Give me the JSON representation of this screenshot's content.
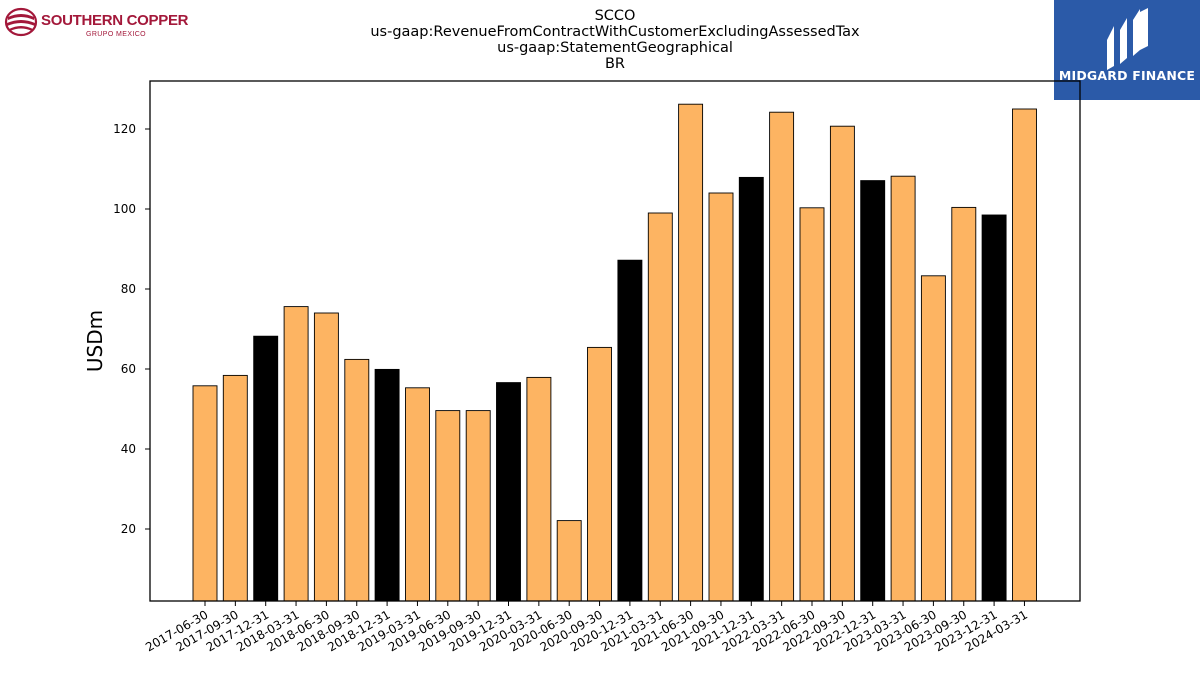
{
  "logos": {
    "left_name": "SOUTHERN COPPER",
    "left_sub": "GRUPO MEXICO",
    "right_name": "MIDGARD FINANCE"
  },
  "colors": {
    "bar_default": "#fdb462",
    "bar_year_end": "#000000",
    "bar_edge": "#000000",
    "right_logo_bg": "#2b5aa8",
    "left_logo": "#a3183a"
  },
  "chart_data": {
    "type": "bar",
    "title": [
      "SCCO",
      "us-gaap:RevenueFromContractWithCustomerExcludingAssessedTax",
      "us-gaap:StatementGeographical",
      "BR"
    ],
    "xlabel": "",
    "ylabel": "USDm",
    "ylim": [
      2,
      132
    ],
    "yticks": [
      20,
      40,
      60,
      80,
      100,
      120
    ],
    "grid": false,
    "categories": [
      "2017-06-30",
      "2017-09-30",
      "2017-12-31",
      "2018-03-31",
      "2018-06-30",
      "2018-09-30",
      "2018-12-31",
      "2019-03-31",
      "2019-06-30",
      "2019-09-30",
      "2019-12-31",
      "2020-03-31",
      "2020-06-30",
      "2020-09-30",
      "2020-12-31",
      "2021-03-31",
      "2021-06-30",
      "2021-09-30",
      "2021-12-31",
      "2022-03-31",
      "2022-06-30",
      "2022-09-30",
      "2022-12-31",
      "2023-03-31",
      "2023-06-30",
      "2023-09-30",
      "2023-12-31",
      "2024-03-31"
    ],
    "values": [
      55.8,
      58.4,
      68.2,
      75.6,
      74.0,
      62.4,
      59.9,
      55.3,
      49.6,
      49.6,
      56.6,
      57.9,
      22.1,
      65.4,
      87.2,
      99.0,
      126.2,
      104.0,
      107.9,
      124.2,
      100.3,
      120.7,
      107.1,
      108.2,
      83.3,
      100.4,
      98.5,
      125.0
    ],
    "highlight": [
      false,
      false,
      true,
      false,
      false,
      false,
      true,
      false,
      false,
      false,
      true,
      false,
      false,
      false,
      true,
      false,
      false,
      false,
      true,
      false,
      false,
      false,
      true,
      false,
      false,
      false,
      true,
      false
    ]
  }
}
